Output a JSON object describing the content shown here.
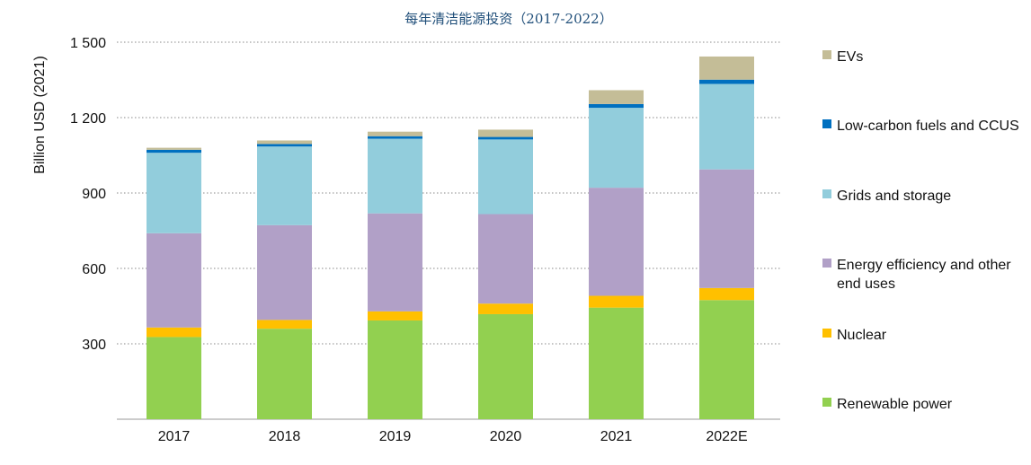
{
  "chart_data": {
    "type": "bar",
    "stacked": true,
    "title": "每年清洁能源投资（2017-2022）",
    "xlabel": "",
    "ylabel": "Billion USD (2021)",
    "ylim": [
      0,
      1500
    ],
    "y_ticks": [
      300,
      600,
      900,
      1200,
      1500
    ],
    "y_tick_labels": [
      "300",
      "600",
      "900",
      "1 200",
      "1 500"
    ],
    "grid": "horizontal dotted",
    "legend_position": "right",
    "categories": [
      "2017",
      "2018",
      "2019",
      "2020",
      "2021",
      "2022E"
    ],
    "series": [
      {
        "name": "Renewable power",
        "color": "#92D050",
        "values": [
          327,
          360,
          393,
          418,
          444,
          474
        ]
      },
      {
        "name": "Nuclear",
        "color": "#FFC000",
        "values": [
          38,
          35,
          36,
          42,
          47,
          48
        ]
      },
      {
        "name": "Energy efficiency and other end uses",
        "color": "#B1A0C7",
        "values": [
          375,
          377,
          390,
          356,
          430,
          472
        ]
      },
      {
        "name": "Grids and storage",
        "color": "#92CDDC",
        "values": [
          320,
          313,
          297,
          297,
          318,
          340
        ]
      },
      {
        "name": "Low-carbon fuels and CCUS",
        "color": "#0070C0",
        "values": [
          12,
          10,
          10,
          10,
          15,
          17
        ]
      },
      {
        "name": "EVs",
        "color": "#C4BD97",
        "values": [
          8,
          14,
          18,
          29,
          55,
          92
        ]
      }
    ]
  }
}
